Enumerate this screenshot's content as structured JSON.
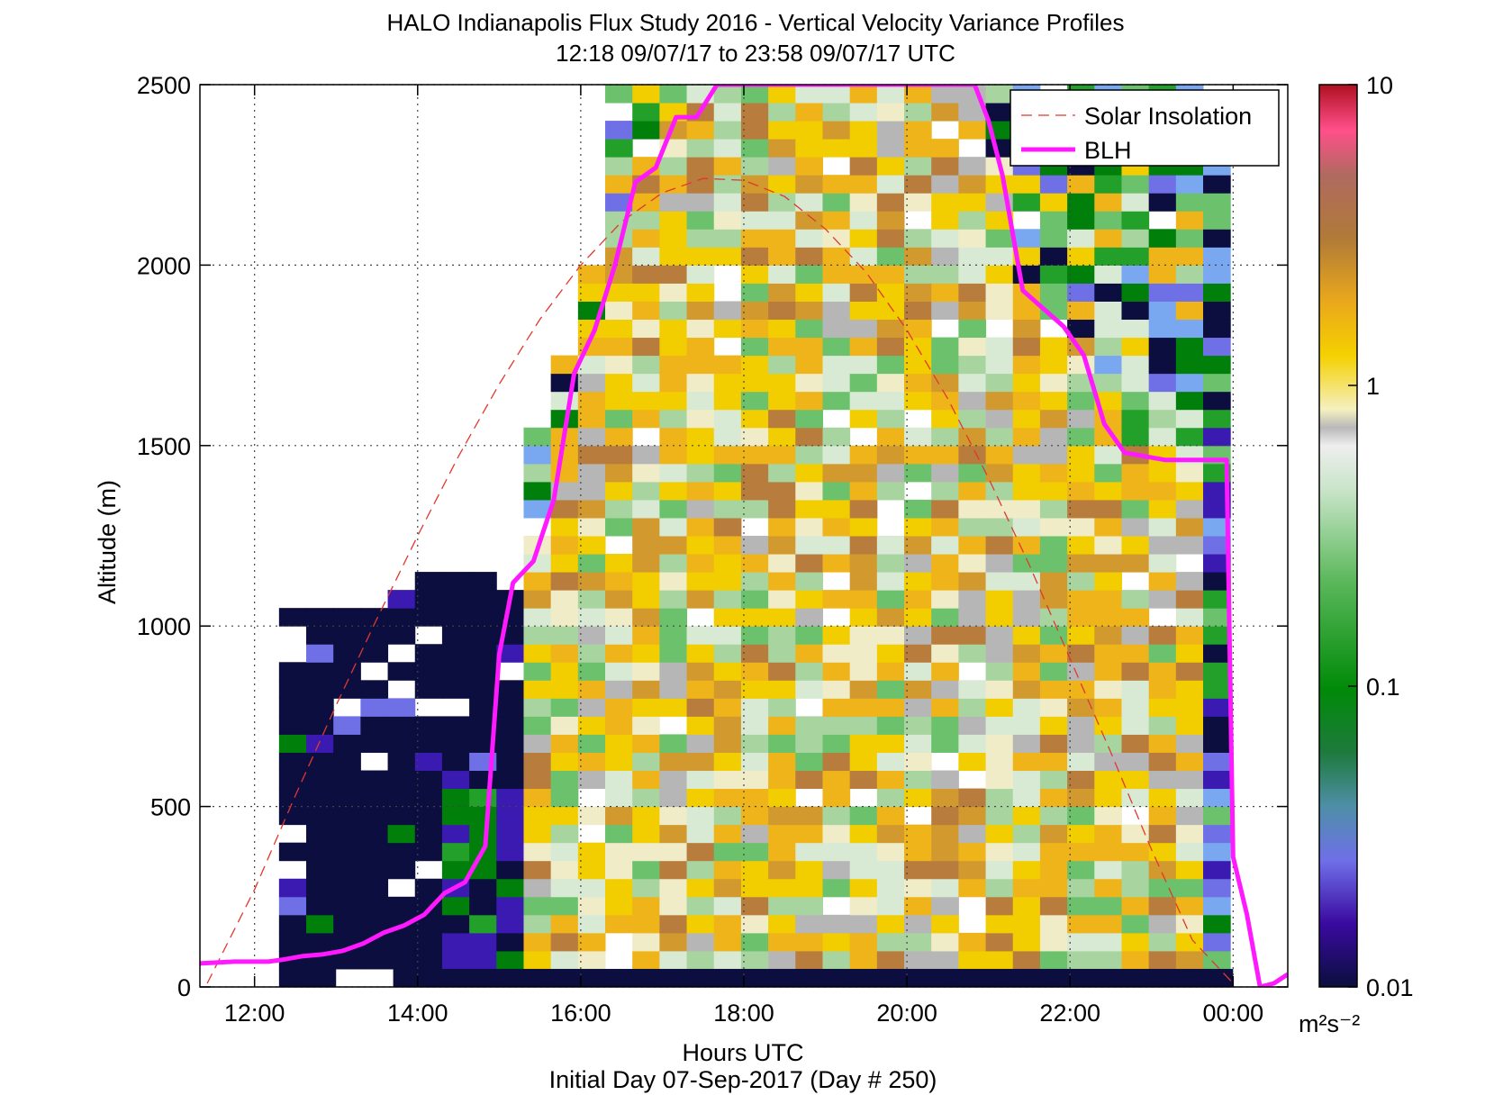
{
  "chart_data": {
    "type": "heatmap",
    "title": "HALO Indianapolis Flux Study 2016 - Vertical Velocity Variance Profiles",
    "subtitle": "12:18 09/07/17 to 23:58 09/07/17  UTC",
    "xlabel": "Hours UTC",
    "xlabel2": "Initial Day 07-Sep-2017 (Day # 250)",
    "ylabel": "Altitude (m)",
    "xlim": [
      11.33,
      24.67
    ],
    "ylim": [
      0,
      2500
    ],
    "x_ticks": [
      12,
      14,
      16,
      18,
      20,
      22,
      24
    ],
    "x_tick_labels": [
      "12:00",
      "14:00",
      "16:00",
      "18:00",
      "20:00",
      "22:00",
      "00:00"
    ],
    "y_ticks": [
      0,
      500,
      1000,
      1500,
      2000,
      2500
    ],
    "y_tick_labels": [
      "0",
      "500",
      "1000",
      "1500",
      "2000",
      "2500"
    ],
    "grid": true,
    "grid_style": "dotted",
    "legend_position": "top-right",
    "colorbar": {
      "scale": "log",
      "range": [
        0.01,
        10
      ],
      "tick_labels": [
        "10",
        "1",
        "0.1",
        "0.01"
      ],
      "tick_values": [
        10,
        1,
        0.1,
        0.01
      ],
      "unit_label": "m²s⁻²"
    },
    "heatmap": {
      "x_start_hour": 12.3,
      "x_step_hours": 0.3333,
      "columns": 35,
      "y_step_m": 50,
      "rows": 50
    },
    "series": [
      {
        "name": "Solar Insolation",
        "style": "dashed",
        "color": "#e0382f",
        "x": [
          11.42,
          12.0,
          12.5,
          13.0,
          13.5,
          14.0,
          14.5,
          15.0,
          15.5,
          16.0,
          16.5,
          17.0,
          17.5,
          18.0,
          18.5,
          19.0,
          19.5,
          20.0,
          20.5,
          21.0,
          21.5,
          22.0,
          22.5,
          23.0,
          23.5,
          24.0
        ],
        "y": [
          10,
          270,
          530,
          780,
          1020,
          1250,
          1470,
          1670,
          1850,
          2000,
          2120,
          2200,
          2240,
          2235,
          2190,
          2100,
          1980,
          1820,
          1630,
          1410,
          1170,
          910,
          650,
          380,
          130,
          10
        ]
      },
      {
        "name": "BLH",
        "style": "solid",
        "color": "#ff19ff",
        "x": [
          11.33,
          11.75,
          12.17,
          12.33,
          12.58,
          12.83,
          13.08,
          13.33,
          13.58,
          13.83,
          14.08,
          14.33,
          14.58,
          14.83,
          15.0,
          15.17,
          15.42,
          15.67,
          15.92,
          16.17,
          16.42,
          16.67,
          16.92,
          17.17,
          17.42,
          17.67,
          17.92,
          18.17,
          18.42,
          18.67,
          18.83,
          19.0,
          19.5,
          20.0,
          20.5,
          20.83,
          21.0,
          21.17,
          21.42,
          21.67,
          21.92,
          22.17,
          22.42,
          22.67,
          22.92,
          23.17,
          23.42,
          23.67,
          23.83,
          23.92,
          24.0,
          24.17,
          24.33,
          24.5,
          24.67
        ],
        "y": [
          65,
          70,
          70,
          75,
          85,
          90,
          100,
          120,
          150,
          170,
          200,
          260,
          290,
          390,
          920,
          1120,
          1180,
          1350,
          1700,
          1820,
          2000,
          2230,
          2270,
          2410,
          2410,
          2500,
          2500,
          2500,
          2500,
          2500,
          2500,
          2500,
          2500,
          2500,
          2500,
          2500,
          2400,
          2250,
          1930,
          1880,
          1830,
          1750,
          1560,
          1480,
          1470,
          1460,
          1460,
          1460,
          1460,
          1460,
          360,
          200,
          0,
          10,
          35
        ]
      }
    ]
  }
}
